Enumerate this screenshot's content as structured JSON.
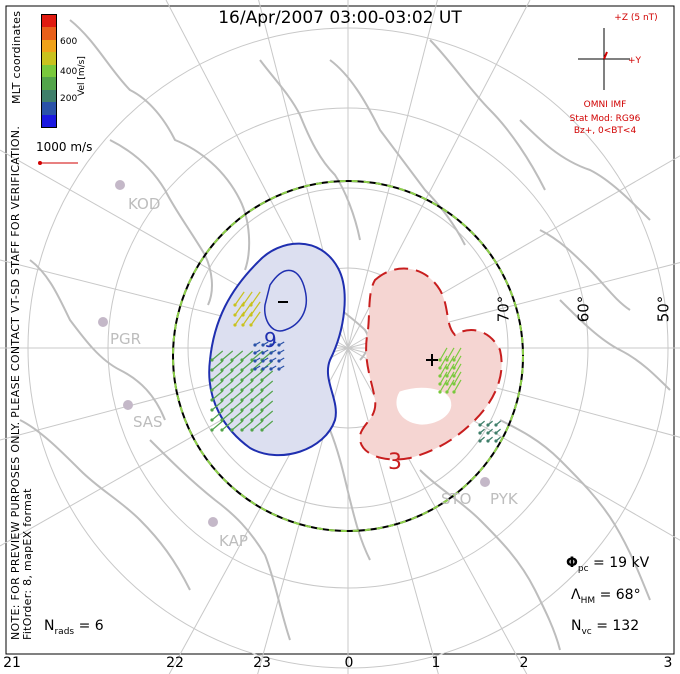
{
  "title": "16/Apr/2007 03:00-03:02 UT",
  "colorbar": {
    "label": "Vel [m/s]",
    "ticks": [
      "600",
      "400",
      "200"
    ],
    "colors": [
      "#1a18e0",
      "#2a52a8",
      "#3f7f6a",
      "#52a44a",
      "#79c93c",
      "#c9c21e",
      "#f0a21a",
      "#e8601a",
      "#e01a10"
    ]
  },
  "side_text": {
    "coordinates": "MLT coordinates",
    "preview_note": "NOTE: FOR PREVIEW PURPOSES ONLY. PLEASE CONTACT VT-SD STAFF FOR VERIFICATION.",
    "fit_order": "FitOrder: 8, mapEX format"
  },
  "reference_vector": "1000 m/s",
  "imf": {
    "scale": "+Z (5 nT)",
    "y_axis": "+Y",
    "source": "OMNI IMF",
    "model": "Stat Mod: RG96",
    "condition": "Bz+, 0<BT<4"
  },
  "stations": [
    "KOD",
    "PGR",
    "SAS",
    "KAP",
    "STO",
    "PYK"
  ],
  "latitude_labels": [
    "70°",
    "60°",
    "50°"
  ],
  "mlt_ticks": [
    "21",
    "22",
    "23",
    "0",
    "1",
    "2",
    "3"
  ],
  "contour_labels": [
    "−",
    "+",
    "9",
    "3"
  ],
  "stats": {
    "phi_pc_label": "Φ",
    "phi_pc_sub": "pc",
    "phi_pc_value": "= 19 kV",
    "lambda_hm_label": "Λ",
    "lambda_hm_sub": "HM",
    "lambda_hm_value": "= 68°",
    "n_vc_label": "N",
    "n_vc_sub": "vc",
    "n_vc_value": "= 132",
    "n_rads_label": "N",
    "n_rads_sub": "rads",
    "n_rads_value": "= 6"
  },
  "colors": {
    "negative_cell_fill": "#dcdff0",
    "negative_cell_line": "#1f2fb0",
    "positive_cell_fill": "#f5d5d2",
    "positive_cell_line": "#c81e1e",
    "boundary_line": "#000000",
    "boundary_dash": "#8ed14a",
    "grid": "#c8c8c8",
    "coast": "#bdbdbd",
    "accent_red": "#d10000"
  }
}
